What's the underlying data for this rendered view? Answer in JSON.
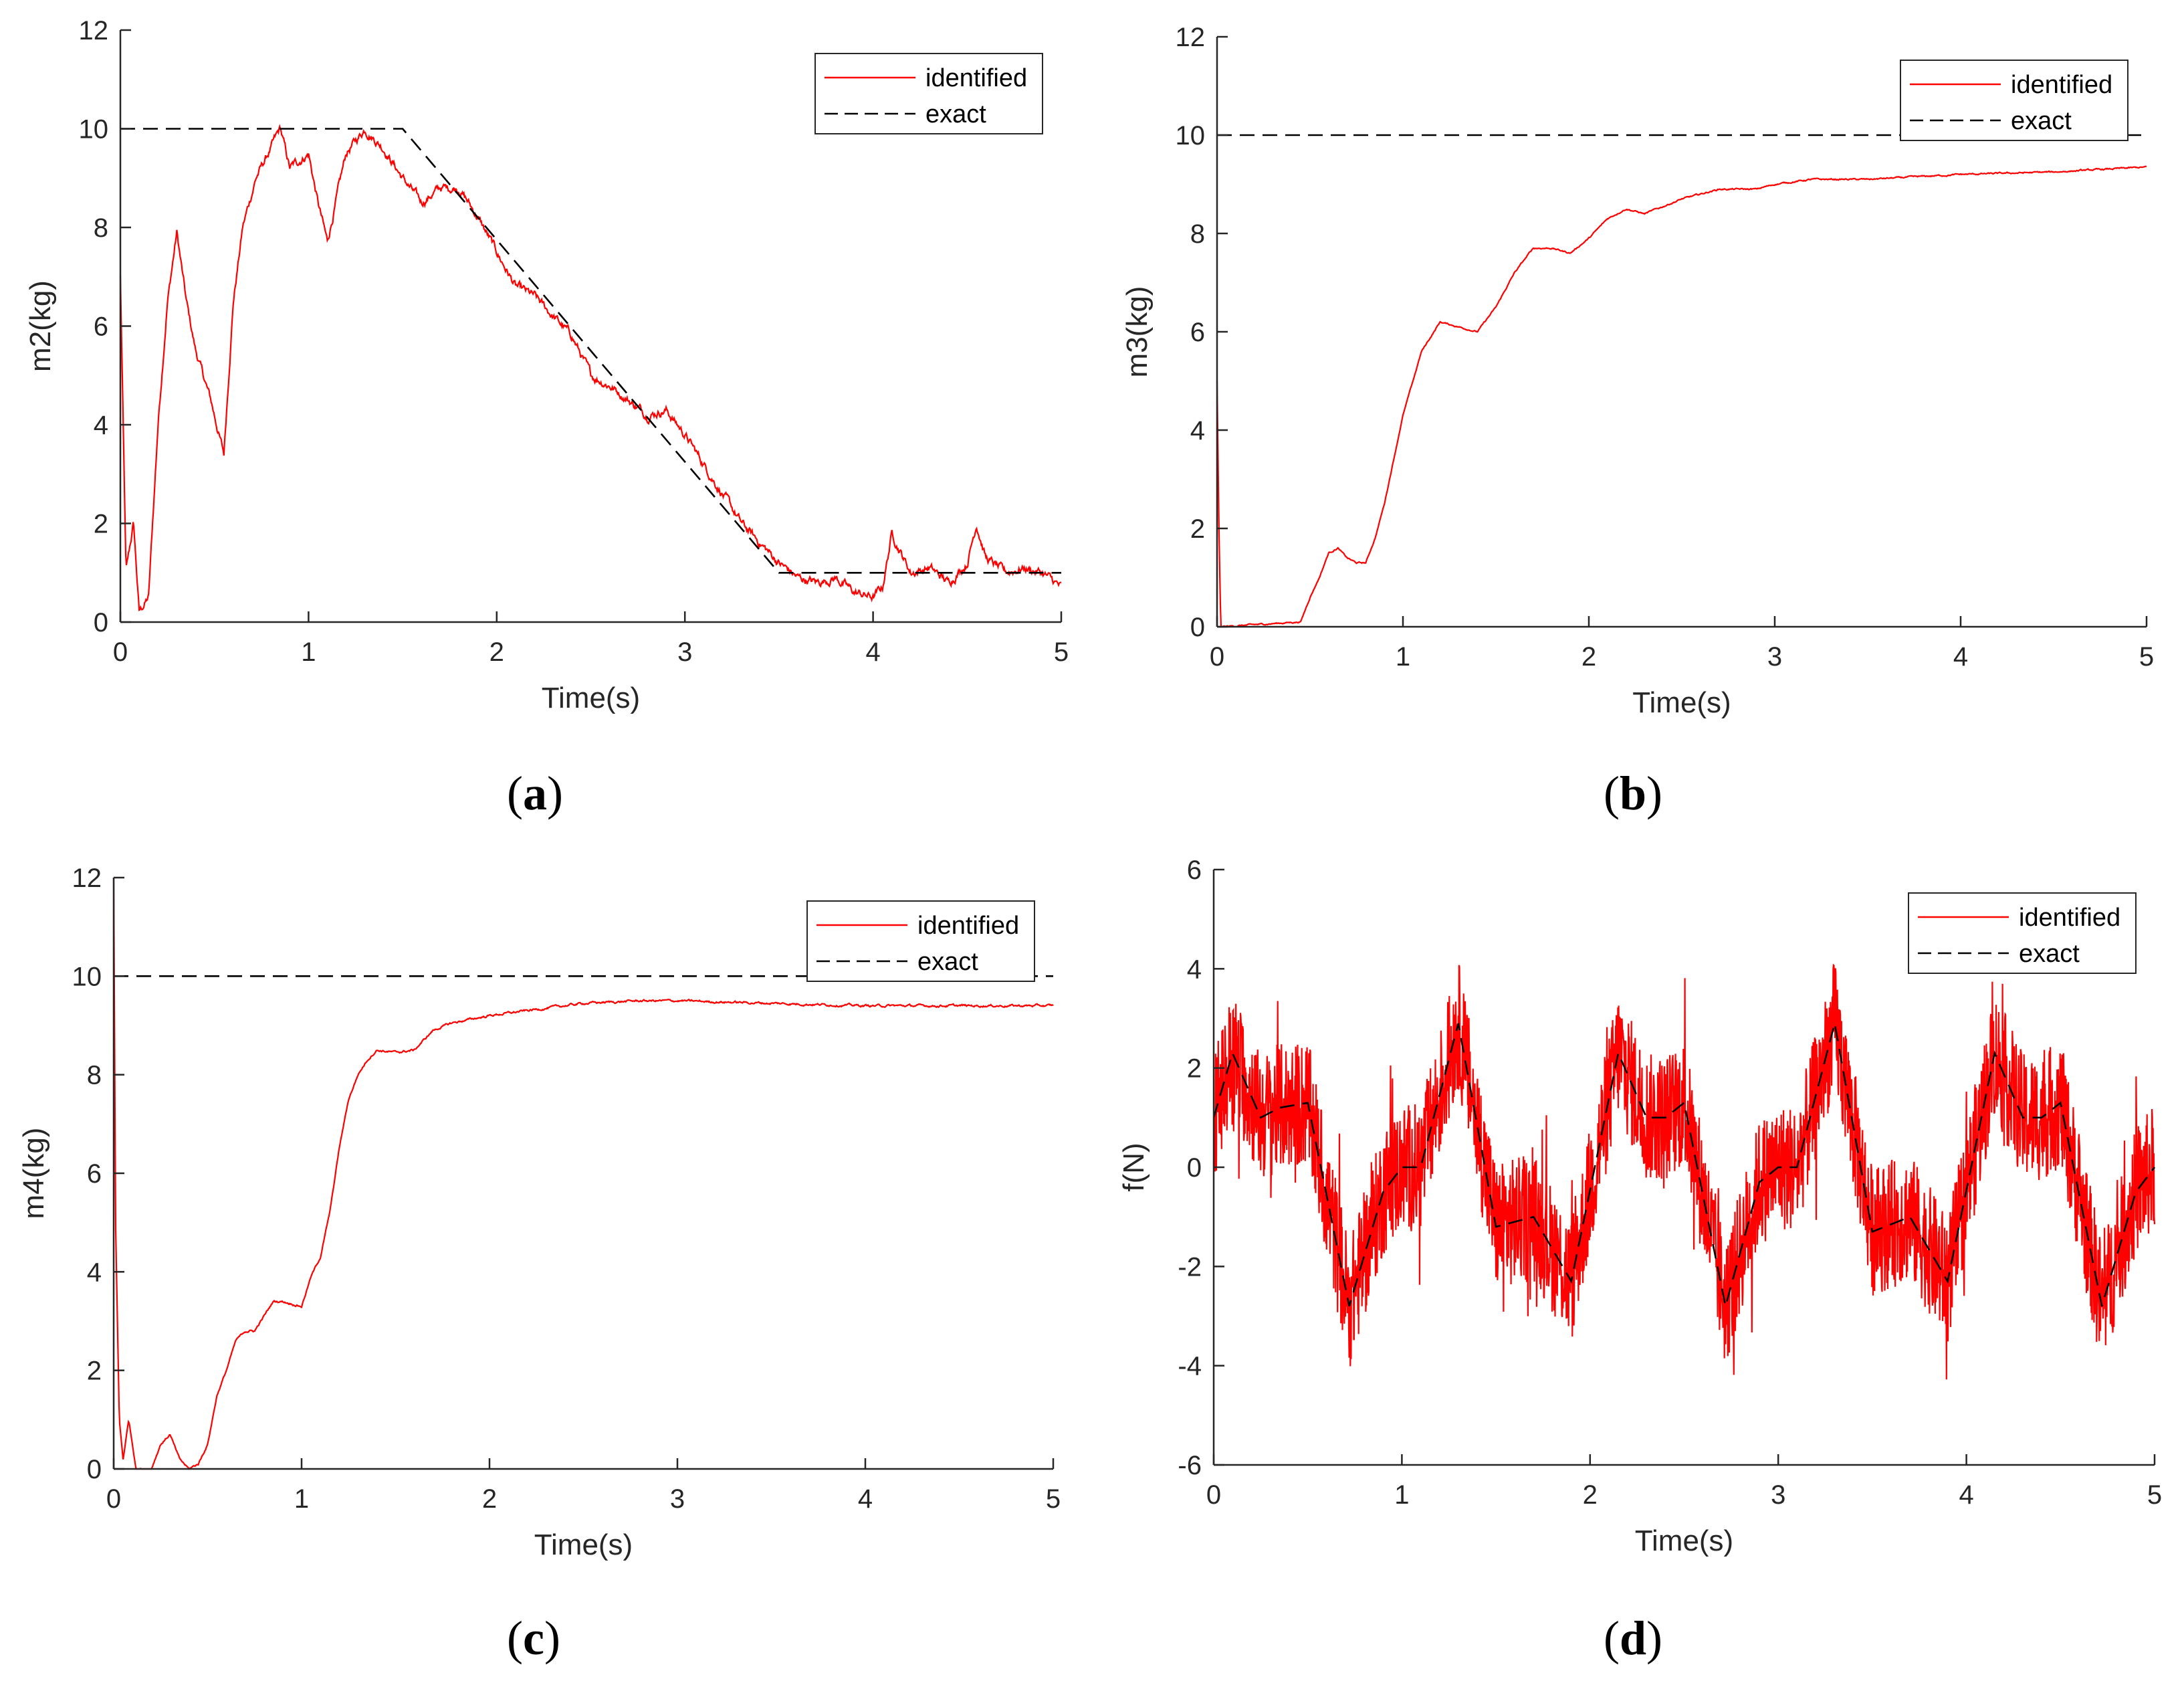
{
  "colors": {
    "identified": "#ff0000",
    "exact": "#000000",
    "axis": "#262626",
    "legend_border": "#262626"
  },
  "chart_data": [
    {
      "id": "a",
      "type": "line",
      "caption_open": "(",
      "caption_letter": "a",
      "caption_close": ")",
      "xlabel": "Time(s)",
      "ylabel": "m2(kg)",
      "xlim": [
        0,
        5
      ],
      "ylim": [
        0,
        12
      ],
      "xticks": [
        0,
        1,
        2,
        3,
        4,
        5
      ],
      "yticks": [
        0,
        2,
        4,
        6,
        8,
        10,
        12
      ],
      "grid": false,
      "legend_position": "top-right",
      "series": [
        {
          "name": "identified",
          "style": "solid",
          "noise": 0.12,
          "x": [
            0,
            0.03,
            0.07,
            0.1,
            0.15,
            0.2,
            0.25,
            0.3,
            0.35,
            0.4,
            0.48,
            0.55,
            0.6,
            0.65,
            0.72,
            0.8,
            0.85,
            0.9,
            1.0,
            1.05,
            1.1,
            1.2,
            1.3,
            1.4,
            1.5,
            1.6,
            1.7,
            1.8,
            1.9,
            2.0,
            2.1,
            2.2,
            2.3,
            2.4,
            2.5,
            2.6,
            2.7,
            2.8,
            2.9,
            3.0,
            3.1,
            3.2,
            3.3,
            3.4,
            3.5,
            3.6,
            3.7,
            3.8,
            3.9,
            4.0,
            4.05,
            4.1,
            4.2,
            4.3,
            4.4,
            4.5,
            4.55,
            4.6,
            4.7,
            4.8,
            4.9,
            5.0
          ],
          "y": [
            7.0,
            1.0,
            2.0,
            0.2,
            0.5,
            4.0,
            6.5,
            7.9,
            6.5,
            5.5,
            4.5,
            3.4,
            6.5,
            8.0,
            9.0,
            9.6,
            10.0,
            9.2,
            9.5,
            8.5,
            7.7,
            9.5,
            10.0,
            9.6,
            9.0,
            8.5,
            8.8,
            8.8,
            8.2,
            7.5,
            6.8,
            6.6,
            6.2,
            5.8,
            5.0,
            4.8,
            4.5,
            4.2,
            4.3,
            3.8,
            3.2,
            2.6,
            2.0,
            1.6,
            1.2,
            0.9,
            0.8,
            0.9,
            0.6,
            0.5,
            0.7,
            1.8,
            1.0,
            1.1,
            0.8,
            1.2,
            2.0,
            1.3,
            1.0,
            1.1,
            1.0,
            0.7
          ]
        },
        {
          "name": "exact",
          "style": "dashed",
          "x": [
            0,
            1.5,
            3.5,
            5.0
          ],
          "y": [
            10,
            10,
            1,
            1
          ]
        }
      ]
    },
    {
      "id": "b",
      "type": "line",
      "caption_open": "(",
      "caption_letter": "b",
      "caption_close": ")",
      "xlabel": "Time(s)",
      "ylabel": "m3(kg)",
      "xlim": [
        0,
        5
      ],
      "ylim": [
        0,
        12
      ],
      "xticks": [
        0,
        1,
        2,
        3,
        4,
        5
      ],
      "yticks": [
        0,
        2,
        4,
        6,
        8,
        10,
        12
      ],
      "grid": false,
      "legend_position": "top-right",
      "series": [
        {
          "name": "identified",
          "style": "solid",
          "noise": 0.02,
          "x": [
            0,
            0.01,
            0.02,
            0.45,
            0.5,
            0.55,
            0.6,
            0.65,
            0.7,
            0.75,
            0.8,
            0.85,
            0.9,
            1.0,
            1.1,
            1.2,
            1.3,
            1.4,
            1.5,
            1.6,
            1.7,
            1.8,
            1.9,
            2.0,
            2.1,
            2.2,
            2.3,
            2.5,
            2.7,
            2.9,
            3.0,
            3.2,
            3.5,
            4.0,
            4.5,
            5.0
          ],
          "y": [
            5.0,
            2.0,
            0.0,
            0.1,
            0.6,
            1.0,
            1.5,
            1.6,
            1.4,
            1.3,
            1.3,
            1.8,
            2.5,
            4.3,
            5.6,
            6.2,
            6.1,
            6.0,
            6.5,
            7.2,
            7.7,
            7.7,
            7.6,
            7.9,
            8.3,
            8.5,
            8.4,
            8.7,
            8.9,
            8.9,
            9.0,
            9.1,
            9.1,
            9.2,
            9.25,
            9.35
          ]
        },
        {
          "name": "exact",
          "style": "dashed",
          "x": [
            0,
            5.0
          ],
          "y": [
            10,
            10
          ]
        }
      ]
    },
    {
      "id": "c",
      "type": "line",
      "caption_open": "(",
      "caption_letter": "c",
      "caption_close": ")",
      "xlabel": "Time(s)",
      "ylabel": "m4(kg)",
      "xlim": [
        0,
        5
      ],
      "ylim": [
        0,
        12
      ],
      "xticks": [
        0,
        1,
        2,
        3,
        4,
        5
      ],
      "yticks": [
        0,
        2,
        4,
        6,
        8,
        10,
        12
      ],
      "grid": false,
      "legend_position": "top-right",
      "series": [
        {
          "name": "identified",
          "style": "solid",
          "noise": 0.03,
          "x": [
            0,
            0.01,
            0.03,
            0.05,
            0.08,
            0.12,
            0.2,
            0.25,
            0.3,
            0.35,
            0.4,
            0.45,
            0.5,
            0.55,
            0.6,
            0.65,
            0.7,
            0.75,
            0.8,
            0.85,
            0.9,
            1.0,
            1.05,
            1.1,
            1.15,
            1.2,
            1.25,
            1.3,
            1.35,
            1.4,
            1.5,
            1.6,
            1.7,
            1.8,
            2.0,
            2.2,
            2.5,
            2.8,
            3.0,
            3.5,
            4.0,
            4.5,
            5.0
          ],
          "y": [
            12.0,
            5.0,
            1.0,
            0.2,
            1.0,
            0.0,
            0.0,
            0.5,
            0.7,
            0.2,
            0.0,
            0.1,
            0.5,
            1.5,
            2.0,
            2.6,
            2.8,
            2.8,
            3.1,
            3.4,
            3.4,
            3.3,
            3.9,
            4.3,
            5.2,
            6.5,
            7.5,
            8.0,
            8.3,
            8.5,
            8.45,
            8.5,
            8.9,
            9.05,
            9.2,
            9.3,
            9.45,
            9.5,
            9.5,
            9.45,
            9.4,
            9.4,
            9.4
          ]
        },
        {
          "name": "exact",
          "style": "dashed",
          "x": [
            0,
            5.0
          ],
          "y": [
            10,
            10
          ]
        }
      ]
    },
    {
      "id": "d",
      "type": "line",
      "caption_open": "(",
      "caption_letter": "d",
      "caption_close": ")",
      "xlabel": "Time(s)",
      "ylabel": "f(N)",
      "xlim": [
        0,
        5
      ],
      "ylim": [
        -6,
        6
      ],
      "xticks": [
        0,
        1,
        2,
        3,
        4,
        5
      ],
      "yticks": [
        -6,
        -4,
        -2,
        0,
        2,
        4,
        6
      ],
      "grid": false,
      "legend_position": "top-right",
      "series": [
        {
          "name": "identified",
          "style": "solid",
          "noise": 1.3,
          "samples": 2500,
          "x": [
            0,
            0.1,
            0.25,
            0.35,
            0.5,
            0.72,
            0.9,
            1.0,
            1.1,
            1.3,
            1.5,
            1.7,
            1.9,
            2.15,
            2.3,
            2.4,
            2.5,
            2.72,
            2.9,
            3.0,
            3.1,
            3.3,
            3.5,
            3.7,
            3.9,
            4.15,
            4.3,
            4.4,
            4.5,
            4.72,
            4.9,
            5.0
          ],
          "y": [
            1.0,
            2.3,
            1.0,
            1.2,
            1.3,
            -2.8,
            -0.5,
            0.0,
            0.0,
            2.9,
            -1.2,
            -1.0,
            -2.3,
            2.3,
            1.0,
            1.0,
            1.3,
            -2.8,
            -0.3,
            0.0,
            0.0,
            2.9,
            -1.3,
            -1.0,
            -2.3,
            2.3,
            1.0,
            1.0,
            1.3,
            -2.8,
            -0.5,
            0.0
          ]
        },
        {
          "name": "exact",
          "style": "dashed",
          "x": [
            0,
            0.1,
            0.25,
            0.35,
            0.5,
            0.72,
            0.9,
            1.0,
            1.1,
            1.3,
            1.5,
            1.7,
            1.9,
            2.15,
            2.3,
            2.4,
            2.5,
            2.72,
            2.9,
            3.0,
            3.1,
            3.3,
            3.5,
            3.7,
            3.9,
            4.15,
            4.3,
            4.4,
            4.5,
            4.72,
            4.9,
            5.0
          ],
          "y": [
            1.0,
            2.3,
            1.0,
            1.2,
            1.3,
            -2.8,
            -0.5,
            0.0,
            0.0,
            2.9,
            -1.2,
            -1.0,
            -2.3,
            2.3,
            1.0,
            1.0,
            1.3,
            -2.8,
            -0.3,
            0.0,
            0.0,
            2.9,
            -1.3,
            -1.0,
            -2.3,
            2.3,
            1.0,
            1.0,
            1.3,
            -2.8,
            -0.5,
            0.0
          ]
        }
      ]
    }
  ]
}
